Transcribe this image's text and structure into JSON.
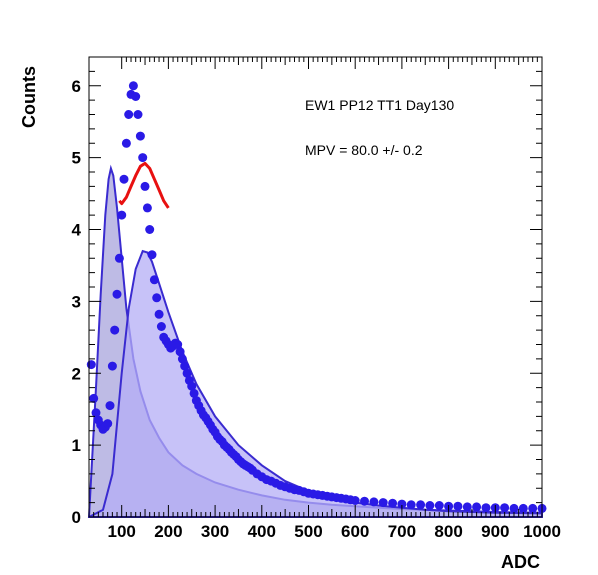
{
  "chart_data": {
    "type": "scatter",
    "title": "",
    "xlabel": "ADC",
    "ylabel": "Counts",
    "xlim": [
      30,
      1000
    ],
    "ylim": [
      0,
      6.4
    ],
    "x_ticks": [
      100,
      200,
      300,
      400,
      500,
      600,
      700,
      800,
      900,
      1000
    ],
    "y_ticks": [
      0,
      1,
      2,
      3,
      4,
      5,
      6
    ],
    "annotations": [
      "EW1 PP12 TT1 Day130",
      "MPV = 80.0 +/- 0.2"
    ],
    "grid": false,
    "legend": "none",
    "series": [
      {
        "kind": "filled-curve",
        "fill_color": "#a8a4dc",
        "line_color": "#3a2bd0",
        "x": [
          30,
          45,
          55,
          65,
          72,
          77,
          82,
          90,
          100,
          110,
          125,
          140,
          160,
          180,
          200,
          230,
          260,
          300,
          350,
          400,
          450,
          500,
          550,
          600,
          650,
          700,
          750,
          800,
          850,
          900,
          1000
        ],
        "y": [
          0,
          1.8,
          3.1,
          4.2,
          4.7,
          4.85,
          4.75,
          4.3,
          3.6,
          2.9,
          2.2,
          1.75,
          1.35,
          1.1,
          0.9,
          0.72,
          0.6,
          0.48,
          0.38,
          0.3,
          0.24,
          0.2,
          0.17,
          0.15,
          0.13,
          0.11,
          0.1,
          0.09,
          0.08,
          0.07,
          0.06
        ]
      },
      {
        "kind": "filled-curve",
        "fill_color": "#b4aef5",
        "line_color": "#3a2bd0",
        "x": [
          30,
          60,
          80,
          100,
          115,
          130,
          145,
          155,
          165,
          180,
          200,
          230,
          260,
          300,
          350,
          400,
          450,
          500,
          550,
          600,
          650,
          700,
          750,
          800,
          850,
          900,
          1000
        ],
        "y": [
          0,
          0.1,
          0.6,
          2.0,
          2.9,
          3.45,
          3.7,
          3.68,
          3.55,
          3.25,
          2.85,
          2.3,
          1.85,
          1.4,
          1.0,
          0.72,
          0.5,
          0.36,
          0.27,
          0.2,
          0.16,
          0.13,
          0.1,
          0.08,
          0.07,
          0.06,
          0.05
        ]
      },
      {
        "kind": "fit-line",
        "line_color": "#e81010",
        "x": [
          95,
          100,
          110,
          120,
          130,
          140,
          150,
          160,
          170,
          180,
          190,
          200
        ],
        "y": [
          4.4,
          4.36,
          4.45,
          4.6,
          4.75,
          4.88,
          4.92,
          4.85,
          4.7,
          4.55,
          4.4,
          4.3
        ]
      },
      {
        "kind": "points",
        "marker_color": "#2a1ae6",
        "x": [
          35,
          40,
          45,
          50,
          55,
          60,
          65,
          70,
          75,
          80,
          85,
          90,
          95,
          100,
          105,
          110,
          115,
          120,
          125,
          130,
          135,
          140,
          145,
          150,
          155,
          160,
          165,
          170,
          175,
          180,
          185,
          190,
          195,
          200,
          205,
          210,
          215,
          220,
          225,
          230,
          235,
          240,
          245,
          250,
          255,
          260,
          265,
          270,
          275,
          280,
          285,
          290,
          295,
          300,
          305,
          310,
          315,
          320,
          325,
          330,
          335,
          340,
          345,
          350,
          355,
          360,
          365,
          370,
          375,
          380,
          390,
          400,
          410,
          420,
          430,
          440,
          450,
          460,
          470,
          480,
          490,
          500,
          510,
          520,
          530,
          540,
          550,
          560,
          570,
          580,
          590,
          600,
          620,
          640,
          660,
          680,
          700,
          720,
          740,
          760,
          780,
          800,
          820,
          840,
          860,
          880,
          900,
          920,
          940,
          960,
          980,
          1000
        ],
        "y": [
          2.12,
          1.65,
          1.45,
          1.35,
          1.28,
          1.22,
          1.25,
          1.3,
          1.55,
          2.1,
          2.6,
          3.1,
          3.6,
          4.2,
          4.7,
          5.2,
          5.6,
          5.88,
          6.0,
          5.85,
          5.6,
          5.3,
          5.0,
          4.6,
          4.3,
          4.0,
          3.65,
          3.3,
          3.05,
          2.82,
          2.65,
          2.5,
          2.45,
          2.4,
          2.35,
          2.38,
          2.42,
          2.4,
          2.3,
          2.2,
          2.1,
          2.0,
          1.9,
          1.82,
          1.72,
          1.62,
          1.55,
          1.48,
          1.42,
          1.38,
          1.33,
          1.28,
          1.22,
          1.18,
          1.12,
          1.08,
          1.05,
          1.0,
          0.97,
          0.94,
          0.9,
          0.87,
          0.84,
          0.8,
          0.77,
          0.74,
          0.72,
          0.7,
          0.68,
          0.65,
          0.6,
          0.56,
          0.52,
          0.5,
          0.47,
          0.44,
          0.42,
          0.4,
          0.38,
          0.37,
          0.35,
          0.33,
          0.32,
          0.31,
          0.3,
          0.29,
          0.28,
          0.27,
          0.26,
          0.25,
          0.24,
          0.23,
          0.22,
          0.21,
          0.2,
          0.19,
          0.18,
          0.17,
          0.17,
          0.16,
          0.16,
          0.15,
          0.15,
          0.14,
          0.14,
          0.13,
          0.13,
          0.13,
          0.12,
          0.12,
          0.12,
          0.12
        ]
      }
    ]
  }
}
